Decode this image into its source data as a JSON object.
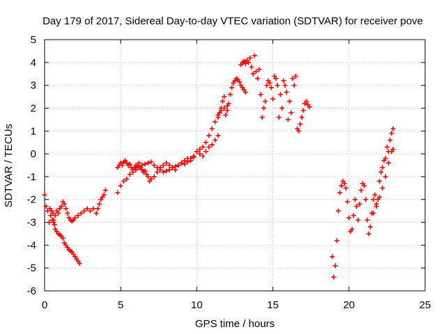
{
  "chart_data": {
    "type": "scatter",
    "title": "Day 179 of 2017, Sidereal Day-to-day VTEC variation (SDTVAR) for receiver pove",
    "xlabel": "GPS time / hours",
    "ylabel": "SDTVAR / TECUs",
    "xlim": [
      0,
      25
    ],
    "ylim": [
      -6,
      5
    ],
    "xticks": [
      "0",
      "5",
      "10",
      "15",
      "20",
      "25"
    ],
    "yticks": [
      "-6",
      "-5",
      "-4",
      "-3",
      "-2",
      "-1",
      "0",
      "1",
      "2",
      "3",
      "4",
      "5"
    ],
    "grid": true,
    "marker": "+",
    "color": "#ff0000",
    "series": [
      {
        "x": [
          0.0,
          0.1,
          0.2,
          0.3,
          0.35,
          0.4,
          0.45,
          0.5,
          0.55,
          0.6,
          0.65,
          0.7,
          0.8,
          0.9,
          1.0,
          1.1,
          1.2,
          1.3,
          1.4,
          1.5,
          1.6,
          1.7,
          1.8,
          1.9,
          2.0,
          2.1,
          2.2,
          2.3
        ],
        "y": [
          -1.8,
          -2.3,
          -2.5,
          -3.0,
          -2.4,
          -2.7,
          -2.5,
          -2.9,
          -2.6,
          -3.0,
          -3.1,
          -3.3,
          -3.4,
          -3.5,
          -3.55,
          -3.6,
          -3.7,
          -3.9,
          -4.0,
          -4.1,
          -4.2,
          -4.25,
          -4.3,
          -4.4,
          -4.5,
          -4.6,
          -4.7,
          -4.8
        ]
      },
      {
        "x": [
          0.6,
          0.7,
          0.8,
          0.9,
          1.0,
          1.1,
          1.2,
          1.3,
          1.4,
          1.5,
          1.6,
          1.7,
          1.8,
          1.9,
          2.0,
          2.2,
          2.4,
          2.6,
          2.8,
          3.0,
          3.2,
          3.4,
          3.5,
          3.6,
          3.7,
          3.8,
          3.9,
          4.0
        ],
        "y": [
          -2.9,
          -2.7,
          -2.5,
          -2.6,
          -2.4,
          -2.3,
          -2.1,
          -2.2,
          -2.4,
          -2.6,
          -2.8,
          -2.9,
          -2.95,
          -2.9,
          -2.8,
          -2.7,
          -2.6,
          -2.5,
          -2.4,
          -2.5,
          -2.4,
          -2.6,
          -2.4,
          -2.2,
          -2.0,
          -1.9,
          -1.8,
          -1.6
        ]
      },
      {
        "x": [
          4.8,
          4.9,
          5.0,
          5.1,
          5.2,
          5.3,
          5.4,
          5.5,
          5.6,
          5.7,
          5.8,
          5.9,
          6.0,
          6.1,
          6.2,
          6.3,
          6.4,
          6.5,
          6.6,
          6.7,
          6.8,
          6.9,
          7.0,
          7.2,
          7.4,
          7.6,
          7.8,
          8.0,
          8.2,
          8.4,
          8.6,
          8.8,
          9.0,
          9.2,
          9.4,
          9.6,
          9.8,
          10.0,
          10.2,
          10.4,
          10.6,
          10.8,
          11.0,
          11.2,
          11.4
        ],
        "y": [
          -0.6,
          -0.5,
          -0.4,
          -0.5,
          -0.35,
          -0.3,
          -0.4,
          -0.5,
          -0.45,
          -0.6,
          -0.7,
          -0.6,
          -0.5,
          -0.55,
          -0.4,
          -0.6,
          -0.7,
          -0.8,
          -0.75,
          -0.9,
          -1.0,
          -1.2,
          -1.1,
          -1.0,
          -0.8,
          -0.6,
          -0.5,
          -0.4,
          -0.5,
          -0.6,
          -0.7,
          -0.5,
          -0.4,
          -0.3,
          -0.2,
          -0.3,
          -0.15,
          0.1,
          0.0,
          -0.1,
          0.1,
          0.3,
          0.4,
          0.6,
          0.8
        ]
      },
      {
        "x": [
          4.8,
          5.0,
          5.2,
          5.4,
          5.6,
          5.8,
          6.0,
          6.2,
          6.4,
          6.6,
          6.8,
          7.0,
          7.2,
          7.4,
          7.6,
          7.8,
          8.0,
          8.2,
          8.4,
          8.6,
          8.8,
          9.0,
          9.2,
          9.4,
          9.6,
          9.8,
          10.0,
          10.2,
          10.4,
          10.6,
          10.8,
          11.0,
          11.2,
          11.4,
          11.6,
          11.8,
          12.0
        ],
        "y": [
          -1.7,
          -1.4,
          -1.2,
          -1.1,
          -0.9,
          -0.8,
          -0.7,
          -0.6,
          -0.5,
          -0.45,
          -0.4,
          -0.35,
          -0.5,
          -0.6,
          -0.7,
          -0.8,
          -0.75,
          -0.7,
          -0.6,
          -0.55,
          -0.5,
          -0.4,
          -0.45,
          -0.35,
          -0.2,
          -0.1,
          0.1,
          0.2,
          0.3,
          0.5,
          0.8,
          1.1,
          1.4,
          1.7,
          1.9,
          2.0,
          2.1
        ]
      },
      {
        "x": [
          11.4,
          11.5,
          11.6,
          11.7,
          11.8,
          11.9,
          12.0,
          12.1,
          12.2,
          12.3,
          12.4,
          12.5,
          12.6,
          12.7,
          12.8,
          12.9,
          13.0,
          13.1,
          13.2
        ],
        "y": [
          1.6,
          1.8,
          2.0,
          2.3,
          2.5,
          1.7,
          1.9,
          2.2,
          2.6,
          2.9,
          3.1,
          3.2,
          3.3,
          3.25,
          3.15,
          3.0,
          2.9,
          2.8,
          2.7
        ]
      },
      {
        "x": [
          12.9,
          13.0,
          13.1,
          13.2,
          13.3,
          13.4,
          13.5,
          13.6,
          13.7,
          13.8,
          13.9,
          14.0,
          14.1,
          14.2,
          14.3,
          14.4,
          14.5,
          14.6,
          14.7,
          14.8,
          14.9,
          15.0,
          15.1,
          15.2,
          15.3,
          15.4,
          15.5,
          15.6,
          15.7,
          15.8,
          15.9,
          16.0,
          16.1,
          16.2,
          16.3,
          16.4,
          16.5,
          16.6,
          16.7,
          16.8,
          16.9,
          17.0,
          17.1,
          17.2,
          17.3,
          17.4
        ],
        "y": [
          3.9,
          4.0,
          4.05,
          3.95,
          4.1,
          4.0,
          4.2,
          3.8,
          3.5,
          4.3,
          3.6,
          3.3,
          3.7,
          2.6,
          1.6,
          2.0,
          2.3,
          3.0,
          3.2,
          3.1,
          2.9,
          2.4,
          3.4,
          3.3,
          3.0,
          1.6,
          2.6,
          2.0,
          3.2,
          3.0,
          2.7,
          1.5,
          2.3,
          1.8,
          3.3,
          3.0,
          3.4,
          1.1,
          1.0,
          1.3,
          1.6,
          1.9,
          2.2,
          2.3,
          2.15,
          2.05
        ]
      },
      {
        "x": [
          18.9,
          19.0,
          19.1,
          19.2,
          19.3,
          19.4,
          19.5,
          19.6,
          19.7,
          19.8,
          19.9,
          20.0,
          20.1,
          20.2,
          20.3,
          20.4,
          20.5,
          20.6,
          20.7,
          20.8,
          20.9,
          21.0,
          21.1,
          21.2,
          21.3,
          21.4,
          21.5,
          21.6,
          21.7,
          21.8,
          21.9,
          22.0,
          22.1,
          22.2,
          22.3,
          22.4,
          22.5,
          22.6,
          22.7,
          22.8,
          22.9
        ],
        "y": [
          -4.5,
          -5.4,
          -4.9,
          -3.8,
          -2.5,
          -1.7,
          -1.4,
          -1.2,
          -1.3,
          -1.5,
          -2.1,
          -2.8,
          -3.4,
          -3.3,
          -2.7,
          -2.0,
          -2.3,
          -2.9,
          -2.2,
          -1.6,
          -1.3,
          -1.4,
          -2.0,
          -2.9,
          -3.5,
          -3.2,
          -2.6,
          -2.0,
          -1.8,
          -2.2,
          -2.0,
          -1.2,
          -0.8,
          -0.6,
          -0.3,
          -0.2,
          0.3,
          0.1,
          0.6,
          0.9,
          1.1
        ]
      },
      {
        "x": [
          21.6,
          21.8,
          22.0,
          22.2,
          22.4,
          22.6,
          22.8,
          22.9
        ],
        "y": [
          -2.6,
          -2.3,
          -1.9,
          -1.5,
          -1.0,
          -0.4,
          0.1,
          0.2
        ]
      }
    ]
  }
}
